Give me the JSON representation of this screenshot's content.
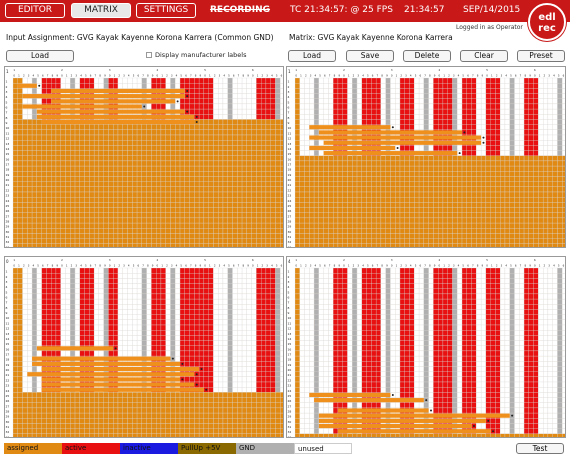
{
  "topbar": {
    "tabs": [
      {
        "label": "EDITOR",
        "active": false
      },
      {
        "label": "MATRIX",
        "active": true
      },
      {
        "label": "SETTINGS",
        "active": false
      }
    ],
    "recording_label": "RECORDING",
    "timecode": "TC 21:34:57: @ 25 FPS",
    "clock": "21:34:57",
    "date": "SEP/14/2015"
  },
  "logo": {
    "line1": "edl",
    "line2": "rec"
  },
  "logged_in": "Logged in as Operator",
  "left": {
    "title": "Input Assignment: GVG Kayak Kayenne Korona Karrera (Common GND)",
    "load_label": "Load",
    "checkbox_label": "Display manufacturer labels"
  },
  "right": {
    "title": "Matrix: GVG Kayak Kayenne Korona Karrera",
    "buttons": [
      "Load",
      "Save",
      "Delete",
      "Clear",
      "Preset"
    ]
  },
  "colors": {
    "assigned": "#e08a14",
    "active": "#e81010",
    "inactive": "#1a1ae0",
    "pullup": "#8a6a00",
    "gnd": "#b0b0b0",
    "unused": "#ffffff",
    "bar": "#f0901c"
  },
  "panels": [
    {
      "id": "tl",
      "row_labels_start": 1,
      "corner": "1"
    },
    {
      "id": "tr",
      "row_labels_start": 1,
      "corner": "1"
    },
    {
      "id": "bl",
      "row_labels_start": 1,
      "corner": "0"
    },
    {
      "id": "br",
      "row_labels_start": 1,
      "corner": "4"
    }
  ],
  "legend": [
    {
      "label": "assigned",
      "color": "#e08a14",
      "text": "#222"
    },
    {
      "label": "active",
      "color": "#e81010",
      "text": "#222"
    },
    {
      "label": "inactive",
      "color": "#1a1ae0",
      "text": "#222"
    },
    {
      "label": "PullUp +5V",
      "color": "#8a6a00",
      "text": "#222"
    },
    {
      "label": "GND",
      "color": "#b0b0b0",
      "text": "#222"
    },
    {
      "label": "unused",
      "color": "#ffffff",
      "text": "#222"
    }
  ],
  "test_label": "Test"
}
